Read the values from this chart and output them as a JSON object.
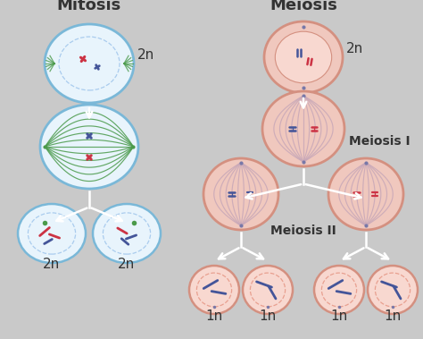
{
  "background_color": "#c9c9c9",
  "title_mitosis": "Mitosis",
  "title_meiosis": "Meiosis",
  "label_meiosis1": "Meiosis I",
  "label_meiosis2": "Meiosis II",
  "label_2n": "2n",
  "label_1n": "1n",
  "cell_blue_outer": "#7ab8d8",
  "cell_blue_fill": "#e8f4fc",
  "cell_pink_outer": "#d49080",
  "cell_pink_fill": "#f0c8be",
  "cell_pink_inner": "#f8d8d0",
  "spindle_green": "#4a9a4a",
  "spindle_pink": "#c8a8b8",
  "chr_red": "#cc3344",
  "chr_blue": "#445599",
  "chr_darkblue": "#334488",
  "nucleus_blue": "#aaccee",
  "nucleus_pink": "#e8a090",
  "dot_purple": "#7878a8",
  "text_dark": "#333333",
  "title_fontsize": 13,
  "label_fontsize": 10,
  "ploidy_fontsize": 11,
  "arrow_lw": 1.8
}
